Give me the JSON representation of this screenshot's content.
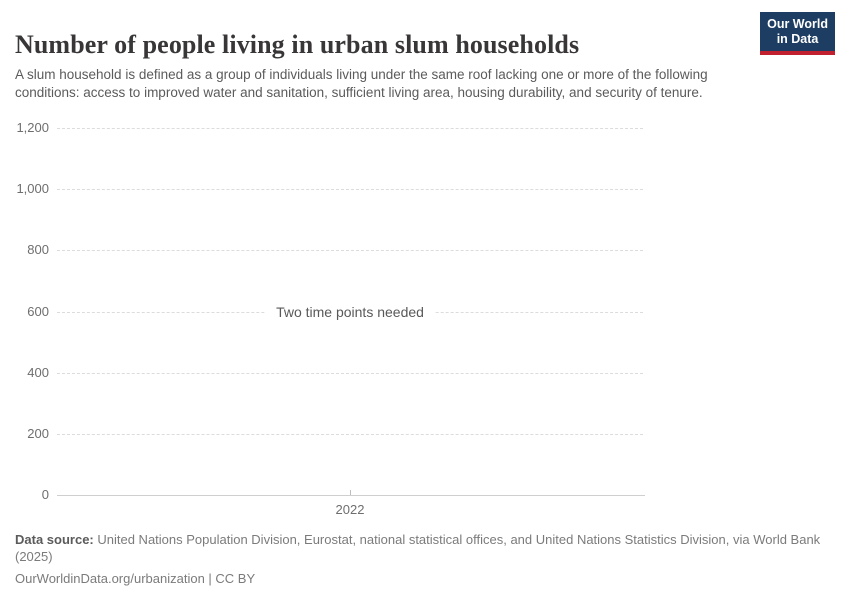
{
  "header": {
    "title": "Number of people living in urban slum households",
    "subtitle": "A slum household is defined as a group of individuals living under the same roof lacking one or more of the following conditions: access to improved water and sanitation, sufficient living area, housing durability, and security of tenure.",
    "logo_line1": "Our World",
    "logo_line2": "in Data"
  },
  "chart_data": {
    "type": "line",
    "title": "Number of people living in urban slum households",
    "empty_state_message": "Two time points needed",
    "series": [],
    "x_ticks": [
      {
        "label": "2022"
      }
    ],
    "y_ticks": [
      {
        "label": "1,200",
        "value": 1200
      },
      {
        "label": "1,000",
        "value": 1000
      },
      {
        "label": "800",
        "value": 800
      },
      {
        "label": "600",
        "value": 600
      },
      {
        "label": "400",
        "value": 400
      },
      {
        "label": "200",
        "value": 200
      },
      {
        "label": "0",
        "value": 0
      }
    ],
    "ylim": [
      0,
      1200
    ],
    "xlabel": "",
    "ylabel": "",
    "grid": "horizontal-dashed",
    "legend": "none"
  },
  "footer": {
    "source_label": "Data source:",
    "source_text": " United Nations Population Division, Eurostat, national statistical offices, and United Nations Statistics Division, via World Bank (2025)",
    "attribution": "OurWorldinData.org/urbanization | CC BY"
  },
  "colors": {
    "logo_navy": "#1d3d63",
    "logo_red": "#c1212f",
    "title_text": "#383636",
    "subtitle_text": "#5b5b5b",
    "axis_text": "#6e6e6e",
    "gridline": "#dcdcdc",
    "axis_line": "#cfcfcf",
    "background": "#ffffff"
  }
}
